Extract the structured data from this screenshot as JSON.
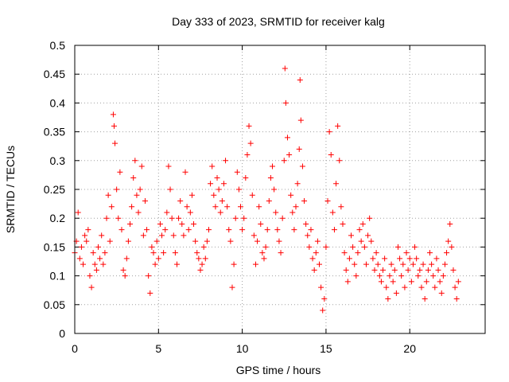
{
  "chart_data": {
    "type": "scatter",
    "title": "Day 333 of 2023, SRMTID for receiver kalg",
    "xlabel": "GPS time / hours",
    "ylabel": "SRMTID / TECUs",
    "xlim": [
      0,
      24.5
    ],
    "ylim": [
      0,
      0.5
    ],
    "x_ticks": [
      0,
      5,
      10,
      15,
      20
    ],
    "y_ticks": [
      0,
      0.05,
      0.1,
      0.15,
      0.2,
      0.25,
      0.3,
      0.35,
      0.4,
      0.45,
      0.5
    ],
    "x_tick_labels": [
      "0",
      "5",
      "10",
      "15",
      "20"
    ],
    "y_tick_labels": [
      "0",
      "0.05",
      "0.1",
      "0.15",
      "0.2",
      "0.25",
      "0.3",
      "0.35",
      "0.4",
      "0.45",
      "0.5"
    ],
    "grid": true,
    "marker": "plus",
    "series_color": "#ff0000",
    "series": [
      {
        "name": "SRMTID",
        "points": [
          [
            0.0,
            0.14
          ],
          [
            0.1,
            0.16
          ],
          [
            0.2,
            0.21
          ],
          [
            0.3,
            0.13
          ],
          [
            0.4,
            0.15
          ],
          [
            0.5,
            0.12
          ],
          [
            0.6,
            0.17
          ],
          [
            0.7,
            0.16
          ],
          [
            0.8,
            0.18
          ],
          [
            0.9,
            0.1
          ],
          [
            1.0,
            0.08
          ],
          [
            1.1,
            0.14
          ],
          [
            1.2,
            0.12
          ],
          [
            1.3,
            0.11
          ],
          [
            1.4,
            0.15
          ],
          [
            1.5,
            0.13
          ],
          [
            1.6,
            0.17
          ],
          [
            1.7,
            0.12
          ],
          [
            1.8,
            0.14
          ],
          [
            1.9,
            0.2
          ],
          [
            2.0,
            0.24
          ],
          [
            2.1,
            0.16
          ],
          [
            2.2,
            0.22
          ],
          [
            2.3,
            0.38
          ],
          [
            2.35,
            0.36
          ],
          [
            2.4,
            0.33
          ],
          [
            2.5,
            0.25
          ],
          [
            2.6,
            0.2
          ],
          [
            2.7,
            0.28
          ],
          [
            2.8,
            0.18
          ],
          [
            2.9,
            0.11
          ],
          [
            3.0,
            0.1
          ],
          [
            3.1,
            0.13
          ],
          [
            3.2,
            0.16
          ],
          [
            3.3,
            0.19
          ],
          [
            3.4,
            0.22
          ],
          [
            3.5,
            0.27
          ],
          [
            3.6,
            0.3
          ],
          [
            3.7,
            0.24
          ],
          [
            3.8,
            0.21
          ],
          [
            3.9,
            0.25
          ],
          [
            4.0,
            0.29
          ],
          [
            4.1,
            0.17
          ],
          [
            4.2,
            0.23
          ],
          [
            4.3,
            0.18
          ],
          [
            4.4,
            0.1
          ],
          [
            4.5,
            0.07
          ],
          [
            4.6,
            0.15
          ],
          [
            4.7,
            0.14
          ],
          [
            4.8,
            0.12
          ],
          [
            4.9,
            0.16
          ],
          [
            5.0,
            0.13
          ],
          [
            5.1,
            0.19
          ],
          [
            5.2,
            0.17
          ],
          [
            5.3,
            0.14
          ],
          [
            5.4,
            0.18
          ],
          [
            5.5,
            0.21
          ],
          [
            5.6,
            0.29
          ],
          [
            5.7,
            0.25
          ],
          [
            5.8,
            0.2
          ],
          [
            5.9,
            0.17
          ],
          [
            6.0,
            0.14
          ],
          [
            6.1,
            0.12
          ],
          [
            6.2,
            0.2
          ],
          [
            6.3,
            0.23
          ],
          [
            6.4,
            0.19
          ],
          [
            6.5,
            0.17
          ],
          [
            6.6,
            0.28
          ],
          [
            6.7,
            0.22
          ],
          [
            6.8,
            0.18
          ],
          [
            6.9,
            0.21
          ],
          [
            7.0,
            0.24
          ],
          [
            7.1,
            0.19
          ],
          [
            7.2,
            0.16
          ],
          [
            7.3,
            0.14
          ],
          [
            7.4,
            0.13
          ],
          [
            7.5,
            0.11
          ],
          [
            7.6,
            0.12
          ],
          [
            7.7,
            0.15
          ],
          [
            7.8,
            0.13
          ],
          [
            7.9,
            0.16
          ],
          [
            8.0,
            0.18
          ],
          [
            8.1,
            0.26
          ],
          [
            8.2,
            0.29
          ],
          [
            8.3,
            0.24
          ],
          [
            8.4,
            0.22
          ],
          [
            8.5,
            0.27
          ],
          [
            8.6,
            0.25
          ],
          [
            8.7,
            0.21
          ],
          [
            8.8,
            0.23
          ],
          [
            8.9,
            0.26
          ],
          [
            9.0,
            0.3
          ],
          [
            9.1,
            0.22
          ],
          [
            9.2,
            0.18
          ],
          [
            9.3,
            0.16
          ],
          [
            9.4,
            0.08
          ],
          [
            9.5,
            0.12
          ],
          [
            9.6,
            0.2
          ],
          [
            9.7,
            0.28
          ],
          [
            9.8,
            0.25
          ],
          [
            9.9,
            0.22
          ],
          [
            10.0,
            0.18
          ],
          [
            10.1,
            0.2
          ],
          [
            10.2,
            0.27
          ],
          [
            10.3,
            0.31
          ],
          [
            10.4,
            0.36
          ],
          [
            10.5,
            0.33
          ],
          [
            10.6,
            0.24
          ],
          [
            10.7,
            0.17
          ],
          [
            10.8,
            0.12
          ],
          [
            10.9,
            0.16
          ],
          [
            11.0,
            0.22
          ],
          [
            11.1,
            0.19
          ],
          [
            11.2,
            0.14
          ],
          [
            11.3,
            0.13
          ],
          [
            11.4,
            0.15
          ],
          [
            11.5,
            0.18
          ],
          [
            11.6,
            0.23
          ],
          [
            11.7,
            0.27
          ],
          [
            11.8,
            0.29
          ],
          [
            11.9,
            0.25
          ],
          [
            12.0,
            0.21
          ],
          [
            12.1,
            0.18
          ],
          [
            12.2,
            0.16
          ],
          [
            12.3,
            0.14
          ],
          [
            12.4,
            0.2
          ],
          [
            12.5,
            0.3
          ],
          [
            12.55,
            0.46
          ],
          [
            12.6,
            0.4
          ],
          [
            12.7,
            0.34
          ],
          [
            12.8,
            0.31
          ],
          [
            12.9,
            0.24
          ],
          [
            13.0,
            0.21
          ],
          [
            13.1,
            0.18
          ],
          [
            13.2,
            0.22
          ],
          [
            13.3,
            0.26
          ],
          [
            13.4,
            0.32
          ],
          [
            13.45,
            0.44
          ],
          [
            13.5,
            0.37
          ],
          [
            13.6,
            0.29
          ],
          [
            13.7,
            0.23
          ],
          [
            13.8,
            0.19
          ],
          [
            13.9,
            0.17
          ],
          [
            14.0,
            0.15
          ],
          [
            14.1,
            0.18
          ],
          [
            14.2,
            0.13
          ],
          [
            14.3,
            0.11
          ],
          [
            14.4,
            0.14
          ],
          [
            14.5,
            0.16
          ],
          [
            14.6,
            0.12
          ],
          [
            14.7,
            0.08
          ],
          [
            14.8,
            0.04
          ],
          [
            14.9,
            0.06
          ],
          [
            15.0,
            0.15
          ],
          [
            15.1,
            0.23
          ],
          [
            15.2,
            0.35
          ],
          [
            15.3,
            0.31
          ],
          [
            15.4,
            0.21
          ],
          [
            15.5,
            0.18
          ],
          [
            15.6,
            0.26
          ],
          [
            15.7,
            0.36
          ],
          [
            15.8,
            0.3
          ],
          [
            15.9,
            0.22
          ],
          [
            16.0,
            0.19
          ],
          [
            16.1,
            0.14
          ],
          [
            16.2,
            0.11
          ],
          [
            16.3,
            0.09
          ],
          [
            16.4,
            0.13
          ],
          [
            16.5,
            0.17
          ],
          [
            16.6,
            0.15
          ],
          [
            16.7,
            0.12
          ],
          [
            16.8,
            0.1
          ],
          [
            16.9,
            0.14
          ],
          [
            17.0,
            0.18
          ],
          [
            17.1,
            0.16
          ],
          [
            17.2,
            0.19
          ],
          [
            17.3,
            0.15
          ],
          [
            17.4,
            0.12
          ],
          [
            17.5,
            0.17
          ],
          [
            17.6,
            0.2
          ],
          [
            17.7,
            0.16
          ],
          [
            17.8,
            0.13
          ],
          [
            17.9,
            0.11
          ],
          [
            18.0,
            0.14
          ],
          [
            18.1,
            0.12
          ],
          [
            18.2,
            0.1
          ],
          [
            18.3,
            0.09
          ],
          [
            18.4,
            0.11
          ],
          [
            18.5,
            0.13
          ],
          [
            18.6,
            0.08
          ],
          [
            18.7,
            0.06
          ],
          [
            18.8,
            0.1
          ],
          [
            18.9,
            0.12
          ],
          [
            19.0,
            0.09
          ],
          [
            19.1,
            0.11
          ],
          [
            19.2,
            0.07
          ],
          [
            19.3,
            0.15
          ],
          [
            19.4,
            0.13
          ],
          [
            19.5,
            0.1
          ],
          [
            19.6,
            0.12
          ],
          [
            19.7,
            0.08
          ],
          [
            19.8,
            0.14
          ],
          [
            19.9,
            0.11
          ],
          [
            20.0,
            0.13
          ],
          [
            20.1,
            0.09
          ],
          [
            20.2,
            0.12
          ],
          [
            20.3,
            0.15
          ],
          [
            20.4,
            0.13
          ],
          [
            20.5,
            0.1
          ],
          [
            20.6,
            0.11
          ],
          [
            20.7,
            0.08
          ],
          [
            20.8,
            0.12
          ],
          [
            20.9,
            0.06
          ],
          [
            21.0,
            0.09
          ],
          [
            21.1,
            0.11
          ],
          [
            21.2,
            0.14
          ],
          [
            21.3,
            0.12
          ],
          [
            21.4,
            0.1
          ],
          [
            21.5,
            0.08
          ],
          [
            21.6,
            0.13
          ],
          [
            21.7,
            0.11
          ],
          [
            21.8,
            0.09
          ],
          [
            21.9,
            0.07
          ],
          [
            22.0,
            0.1
          ],
          [
            22.1,
            0.12
          ],
          [
            22.2,
            0.14
          ],
          [
            22.3,
            0.16
          ],
          [
            22.4,
            0.19
          ],
          [
            22.5,
            0.15
          ],
          [
            22.6,
            0.11
          ],
          [
            22.7,
            0.08
          ],
          [
            22.8,
            0.06
          ],
          [
            22.9,
            0.09
          ]
        ]
      }
    ]
  }
}
